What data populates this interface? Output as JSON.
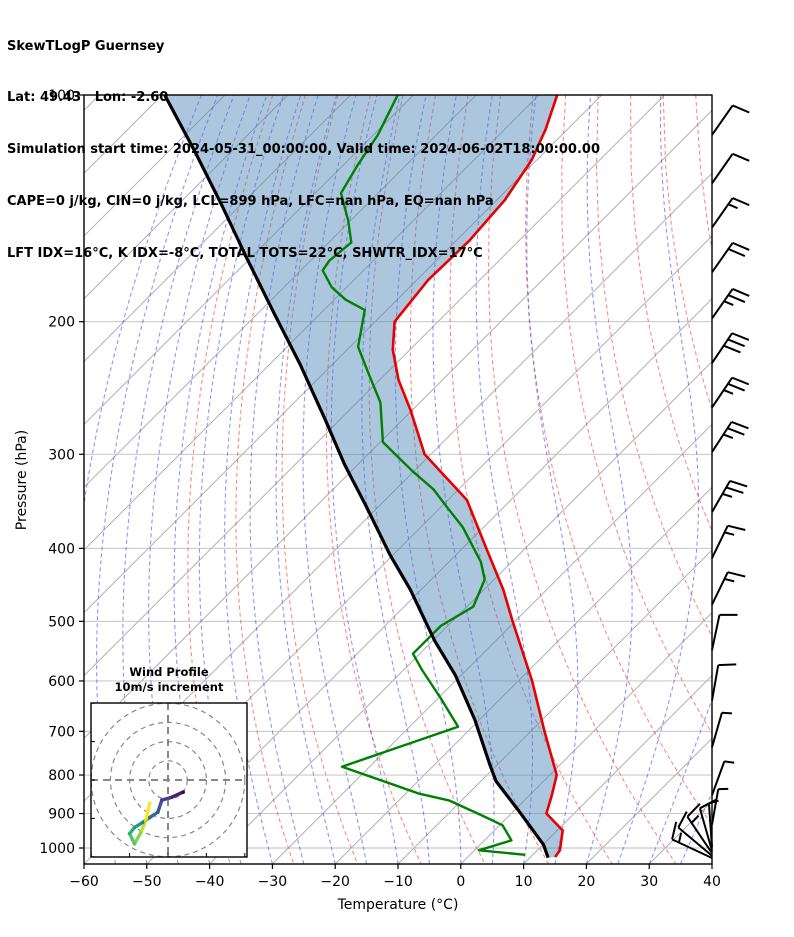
{
  "header": {
    "title_lines": [
      "SkewTLogP Guernsey",
      "Lat: 49.43   Lon: -2.60",
      "Simulation start time: 2024-05-31_00:00:00, Valid time: 2024-06-02T18:00:00.00",
      "CAPE=0 j/kg, CIN=0 j/kg, LCL=899 hPa, LFC=nan hPa, EQ=nan hPa",
      "LFT IDX=16°C, K IDX=-8°C, TOTAL TOTS=22°C, SHWTR_IDX=17°C"
    ]
  },
  "axes": {
    "x_label": "Temperature (°C)",
    "y_label": "Pressure (hPa)",
    "x_ticks": [
      -60,
      -50,
      -40,
      -30,
      -20,
      -10,
      0,
      10,
      20,
      30,
      40
    ],
    "y_ticks": [
      100,
      200,
      300,
      400,
      500,
      600,
      700,
      800,
      900,
      1000
    ],
    "x_range_c": [
      -60,
      40
    ],
    "pressure_range_hpa": [
      100,
      1050
    ],
    "skew_angle_deg": 45
  },
  "inset": {
    "title_lines": [
      "Wind Profile",
      "10m/s increment"
    ],
    "ring_increment_ms": 10,
    "rings_ms": [
      10,
      20,
      30,
      40
    ]
  },
  "chart_data": {
    "type": "skewt-logp",
    "title": "SkewTLogP Guernsey",
    "station": {
      "lat": 49.43,
      "lon": -2.6
    },
    "simulation_start": "2024-05-31_00:00:00",
    "valid_time": "2024-06-02T18:00:00.00",
    "indices": {
      "CAPE_j_kg": 0,
      "CIN_j_kg": 0,
      "LCL_hPa": 899,
      "LFC_hPa": "nan",
      "EQ_hPa": "nan",
      "LFT_IDX_C": 16,
      "K_IDX_C": -8,
      "TOTAL_TOTS_C": 22,
      "SHWTR_IDX_C": 17
    },
    "shade_fill": "rgba(70,130,180,0.45)",
    "background": {
      "isotherm": {
        "color": "#a8a8a8",
        "step_c": 10
      },
      "grid_color": "#bdbdbd",
      "dry_adiabat": {
        "color": "rgba(240,75,75,0.65)",
        "theta_c_from": -40,
        "theta_c_to": 160,
        "step_c": 10
      },
      "moist_adiabat": {
        "color": "rgba(75,75,240,0.6)",
        "start_c_from": -60,
        "start_c_to": 40,
        "step_c": 5
      }
    },
    "series": {
      "temperature": {
        "name": "temperature",
        "color": "#e60000",
        "points_p_t": [
          [
            100,
            -107.1
          ],
          [
            111,
            -103.5
          ],
          [
            122,
            -100.8
          ],
          [
            138,
            -98.7
          ],
          [
            156,
            -97.9
          ],
          [
            176,
            -98.2
          ],
          [
            200,
            -96.9
          ],
          [
            218,
            -92.7
          ],
          [
            239,
            -87.0
          ],
          [
            262,
            -80.3
          ],
          [
            300,
            -71.0
          ],
          [
            345,
            -57.0
          ],
          [
            400,
            -46.2
          ],
          [
            454,
            -36.9
          ],
          [
            500,
            -30.4
          ],
          [
            600,
            -17.8
          ],
          [
            700,
            -7.8
          ],
          [
            800,
            1.1
          ],
          [
            850,
            3.5
          ],
          [
            900,
            5.6
          ],
          [
            948,
            10.9
          ],
          [
            1007,
            13.6
          ],
          [
            1028,
            13.9
          ]
        ]
      },
      "dewpoint": {
        "name": "dewpoint",
        "color": "#008000",
        "points_p_t": [
          [
            100,
            -132.5
          ],
          [
            113,
            -129.3
          ],
          [
            124,
            -127.7
          ],
          [
            135,
            -125.9
          ],
          [
            147,
            -120.3
          ],
          [
            157,
            -116.4
          ],
          [
            166,
            -117.0
          ],
          [
            171,
            -116.5
          ],
          [
            180,
            -112.4
          ],
          [
            187,
            -108.2
          ],
          [
            193,
            -103.5
          ],
          [
            216,
            -98.7
          ],
          [
            235,
            -92.6
          ],
          [
            256,
            -86.3
          ],
          [
            289,
            -79.6
          ],
          [
            302,
            -75.0
          ],
          [
            316,
            -70.2
          ],
          [
            334,
            -64.0
          ],
          [
            355,
            -58.4
          ],
          [
            375,
            -53.3
          ],
          [
            395,
            -49.2
          ],
          [
            417,
            -44.9
          ],
          [
            440,
            -41.5
          ],
          [
            478,
            -39.0
          ],
          [
            507,
            -41.1
          ],
          [
            552,
            -41.1
          ],
          [
            580,
            -37.1
          ],
          [
            634,
            -29.4
          ],
          [
            690,
            -22.3
          ],
          [
            780,
            -34.4
          ],
          [
            847,
            -17.8
          ],
          [
            865,
            -11.9
          ],
          [
            905,
            -4.4
          ],
          [
            933,
            0.5
          ],
          [
            977,
            4.3
          ],
          [
            1007,
            0.7
          ],
          [
            1021,
            8.8
          ]
        ]
      },
      "shade_boundary": {
        "name": "shade-boundary",
        "color": "#000000",
        "points_p_t": [
          [
            100,
            -169.6
          ],
          [
            119,
            -155.7
          ],
          [
            140,
            -143.0
          ],
          [
            165,
            -130.4
          ],
          [
            196,
            -117.0
          ],
          [
            228,
            -105.1
          ],
          [
            270,
            -92.3
          ],
          [
            310,
            -82.0
          ],
          [
            350,
            -72.4
          ],
          [
            408,
            -60.5
          ],
          [
            454,
            -51.7
          ],
          [
            530,
            -39.8
          ],
          [
            589,
            -31.0
          ],
          [
            676,
            -20.7
          ],
          [
            776,
            -11.1
          ],
          [
            815,
            -7.6
          ],
          [
            892,
            0.7
          ],
          [
            990,
            10.1
          ],
          [
            1030,
            12.9
          ]
        ]
      }
    },
    "wind_barbs": [
      {
        "pressure_hpa": 113,
        "angle_deg": 35,
        "feathers": "F"
      },
      {
        "pressure_hpa": 131,
        "angle_deg": 35,
        "feathers": "F"
      },
      {
        "pressure_hpa": 150,
        "angle_deg": 35,
        "feathers": "FH"
      },
      {
        "pressure_hpa": 172,
        "angle_deg": 35,
        "feathers": "FF"
      },
      {
        "pressure_hpa": 198,
        "angle_deg": 35,
        "feathers": "FFH"
      },
      {
        "pressure_hpa": 227,
        "angle_deg": 34,
        "feathers": "FFF"
      },
      {
        "pressure_hpa": 260,
        "angle_deg": 34,
        "feathers": "FFH"
      },
      {
        "pressure_hpa": 298,
        "angle_deg": 33,
        "feathers": "FFH"
      },
      {
        "pressure_hpa": 358,
        "angle_deg": 30,
        "feathers": "FFH"
      },
      {
        "pressure_hpa": 412,
        "angle_deg": 26,
        "feathers": "FH"
      },
      {
        "pressure_hpa": 475,
        "angle_deg": 26,
        "feathers": "FH"
      },
      {
        "pressure_hpa": 546,
        "angle_deg": 12,
        "feathers": "F"
      },
      {
        "pressure_hpa": 637,
        "angle_deg": 10,
        "feathers": "F"
      },
      {
        "pressure_hpa": 735,
        "angle_deg": 16,
        "feathers": "H"
      },
      {
        "pressure_hpa": 851,
        "angle_deg": 20,
        "feathers": "H"
      },
      {
        "pressure_hpa": 931,
        "angle_deg": 10,
        "feathers": "H"
      },
      {
        "pressure_hpa": 998,
        "angle_deg": -4,
        "feathers": "H"
      },
      {
        "pressure_hpa": 1008,
        "angle_deg": -16,
        "feathers": "F"
      },
      {
        "pressure_hpa": 1016,
        "angle_deg": -34,
        "feathers": "FH"
      },
      {
        "pressure_hpa": 1024,
        "angle_deg": -50,
        "feathers": "F"
      },
      {
        "pressure_hpa": 1031,
        "angle_deg": -65,
        "feathers": "FH"
      }
    ],
    "hodograph": {
      "points_uv_ms": [
        {
          "u": 7.9,
          "v": -6.3,
          "color": "#440154"
        },
        {
          "u": 2.1,
          "v": -8.9,
          "color": "#482173"
        },
        {
          "u": -3.2,
          "v": -10.5,
          "color": "#433e85"
        },
        {
          "u": -5.3,
          "v": -16.8,
          "color": "#38598c"
        },
        {
          "u": -9.5,
          "v": -19.5,
          "color": "#2d708e"
        },
        {
          "u": -13.2,
          "v": -22.1,
          "color": "#25858e"
        },
        {
          "u": -17.4,
          "v": -24.7,
          "color": "#1e9b8a"
        },
        {
          "u": -20.0,
          "v": -27.9,
          "color": "#2ab07f"
        },
        {
          "u": -17.4,
          "v": -33.2,
          "color": "#52c569"
        },
        {
          "u": -14.2,
          "v": -27.4,
          "color": "#86d549"
        },
        {
          "u": -11.6,
          "v": -21.1,
          "color": "#c2df23"
        },
        {
          "u": -9.5,
          "v": -12.1,
          "color": "#fde725"
        }
      ]
    }
  }
}
